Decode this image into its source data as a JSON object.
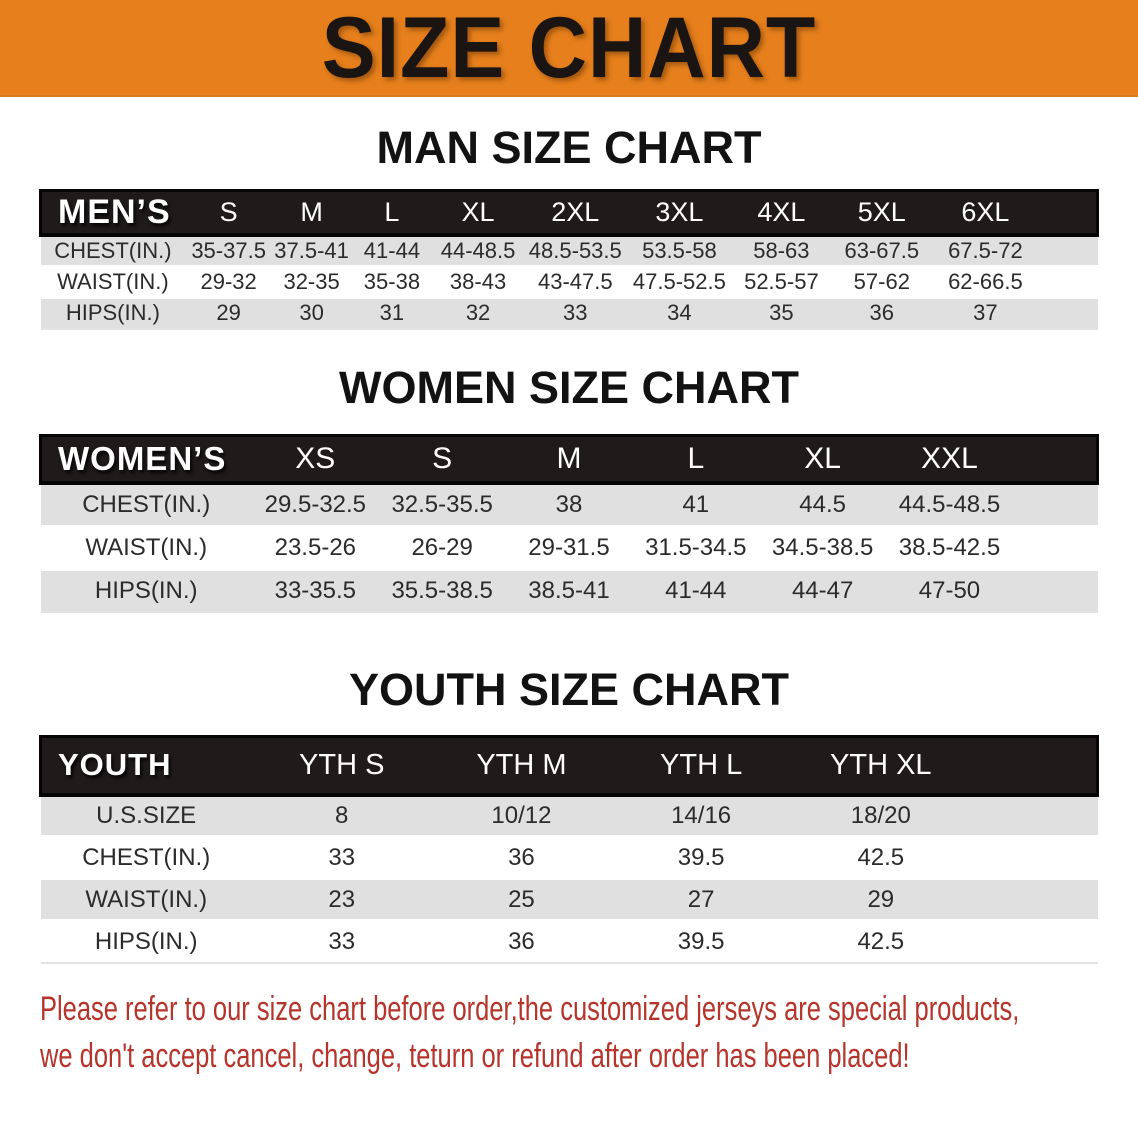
{
  "banner": {
    "title": "SIZE CHART"
  },
  "colors": {
    "banner_bg": "#E67F1C",
    "banner_title": "#1A1512",
    "header_bar": "#201B1B",
    "header_border": "#050505",
    "header_text": "#FFFFFF",
    "row_stripe": "#E0E0E0",
    "cell_text": "#2B2B2B",
    "notice_text": "#B5342B"
  },
  "sections": [
    {
      "id": "men",
      "heading": "MAN SIZE CHART",
      "table": {
        "header_label": "MEN’S",
        "columns": [
          "S",
          "M",
          "L",
          "XL",
          "2XL",
          "3XL",
          "4XL",
          "5XL",
          "6XL"
        ],
        "rows": [
          {
            "label": "CHEST(IN.)",
            "values": [
              "35-37.5",
              "37.5-41",
              "41-44",
              "44-48.5",
              "48.5-53.5",
              "53.5-58",
              "58-63",
              "63-67.5",
              "67.5-72"
            ]
          },
          {
            "label": "WAIST(IN.)",
            "values": [
              "29-32",
              "32-35",
              "35-38",
              "38-43",
              "43-47.5",
              "47.5-52.5",
              "52.5-57",
              "57-62",
              "62-66.5"
            ]
          },
          {
            "label": "HIPS(IN.)",
            "values": [
              "29",
              "30",
              "31",
              "32",
              "33",
              "34",
              "35",
              "36",
              "37"
            ]
          }
        ]
      }
    },
    {
      "id": "women",
      "heading": "WOMEN SIZE CHART",
      "table": {
        "header_label": "WOMEN’S",
        "columns": [
          "XS",
          "S",
          "M",
          "L",
          "XL",
          "XXL"
        ],
        "rows": [
          {
            "label": "CHEST(IN.)",
            "values": [
              "29.5-32.5",
              "32.5-35.5",
              "38",
              "41",
              "44.5",
              "44.5-48.5"
            ]
          },
          {
            "label": "WAIST(IN.)",
            "values": [
              "23.5-26",
              "26-29",
              "29-31.5",
              "31.5-34.5",
              "34.5-38.5",
              "38.5-42.5"
            ]
          },
          {
            "label": "HIPS(IN.)",
            "values": [
              "33-35.5",
              "35.5-38.5",
              "38.5-41",
              "41-44",
              "44-47",
              "47-50"
            ]
          }
        ]
      }
    },
    {
      "id": "youth",
      "heading": "YOUTH SIZE CHART",
      "table": {
        "header_label": "YOUTH",
        "columns": [
          "YTH S",
          "YTH M",
          "YTH L",
          "YTH XL"
        ],
        "rows": [
          {
            "label": "U.S.SIZE",
            "values": [
              "8",
              "10/12",
              "14/16",
              "18/20"
            ]
          },
          {
            "label": "CHEST(IN.)",
            "values": [
              "33",
              "36",
              "39.5",
              "42.5"
            ]
          },
          {
            "label": "WAIST(IN.)",
            "values": [
              "23",
              "25",
              "27",
              "29"
            ]
          },
          {
            "label": "HIPS(IN.)",
            "values": [
              "33",
              "36",
              "39.5",
              "42.5"
            ]
          }
        ]
      }
    }
  ],
  "footer": {
    "line1": "Please refer to our size chart before order,the customized jerseys are special products,",
    "line2": "we don't accept cancel, change, teturn or refund after order has been placed!"
  }
}
